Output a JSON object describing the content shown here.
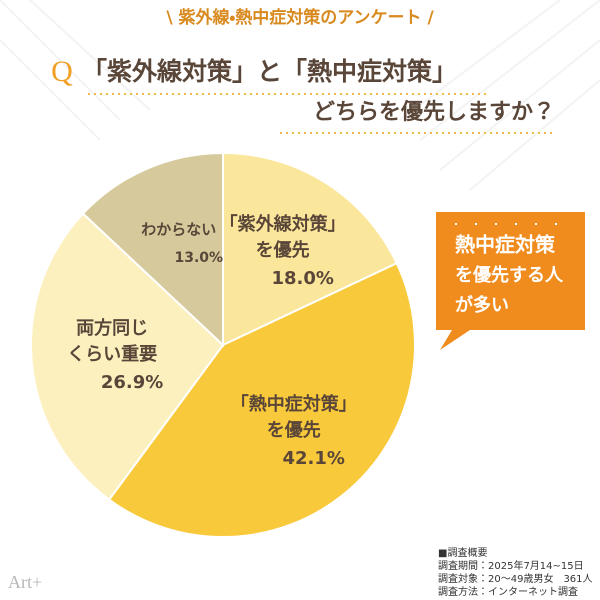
{
  "chart_data": {
    "type": "pie",
    "title": "\\ 紫外線・熱中症対策のアンケート /",
    "question_mark": "Q",
    "question": [
      "「紫外線対策」と「熱中症対策」",
      "どちらを優先しますか？"
    ],
    "categories": [
      [
        "「紫外線対策」",
        "を優先"
      ],
      [
        "「熱中症対策」",
        "を優先"
      ],
      [
        "両方同じ",
        "くらい重要"
      ],
      [
        "わからない"
      ]
    ],
    "values": [
      18.0,
      42.1,
      26.9,
      13.0
    ],
    "value_labels": [
      "18.0%",
      "42.1%",
      "26.9%",
      "13.0%"
    ],
    "colors": [
      "#fbe79b",
      "#f8c93b",
      "#fdf0bf",
      "#d6c99c"
    ],
    "callout": [
      "熱中症対策",
      "を優先する人",
      "が多い"
    ],
    "notes": [
      "■調査概要",
      "調査期間：2025年7月14~15日",
      "調査対象：20～49歳男女　361人",
      "調査方法：インターネット調査"
    ],
    "logo": "Art+"
  }
}
